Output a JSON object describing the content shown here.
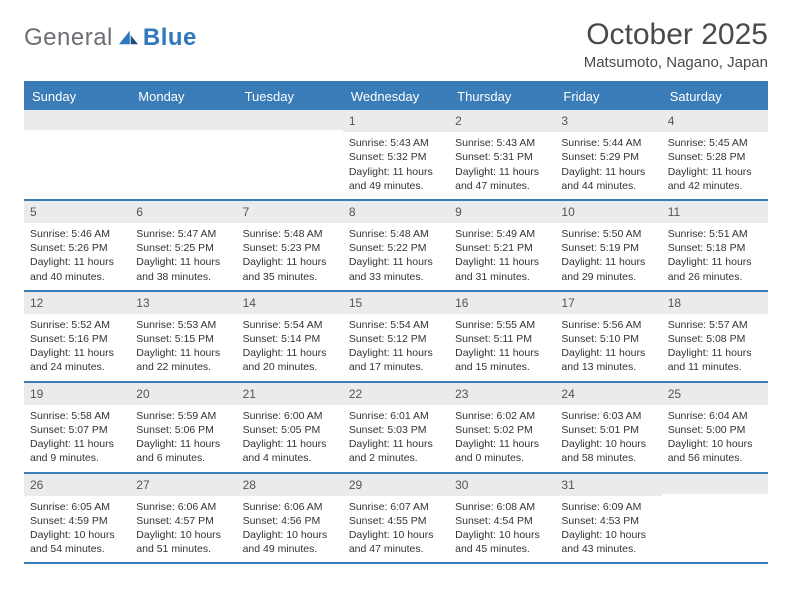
{
  "logo": {
    "word1": "General",
    "word2": "Blue"
  },
  "title": "October 2025",
  "location": "Matsumoto, Nagano, Japan",
  "colors": {
    "header_bar": "#3a7cb8",
    "daynum_bg": "#e9ebed",
    "rule": "#3a7cb8",
    "logo_gray": "#6b6f73",
    "logo_blue": "#2f78bd",
    "text": "#333333"
  },
  "weekdays": [
    "Sunday",
    "Monday",
    "Tuesday",
    "Wednesday",
    "Thursday",
    "Friday",
    "Saturday"
  ],
  "weeks": [
    [
      {
        "n": "",
        "lines": [
          "",
          "",
          "",
          ""
        ]
      },
      {
        "n": "",
        "lines": [
          "",
          "",
          "",
          ""
        ]
      },
      {
        "n": "",
        "lines": [
          "",
          "",
          "",
          ""
        ]
      },
      {
        "n": "1",
        "lines": [
          "Sunrise: 5:43 AM",
          "Sunset: 5:32 PM",
          "Daylight: 11 hours",
          "and 49 minutes."
        ]
      },
      {
        "n": "2",
        "lines": [
          "Sunrise: 5:43 AM",
          "Sunset: 5:31 PM",
          "Daylight: 11 hours",
          "and 47 minutes."
        ]
      },
      {
        "n": "3",
        "lines": [
          "Sunrise: 5:44 AM",
          "Sunset: 5:29 PM",
          "Daylight: 11 hours",
          "and 44 minutes."
        ]
      },
      {
        "n": "4",
        "lines": [
          "Sunrise: 5:45 AM",
          "Sunset: 5:28 PM",
          "Daylight: 11 hours",
          "and 42 minutes."
        ]
      }
    ],
    [
      {
        "n": "5",
        "lines": [
          "Sunrise: 5:46 AM",
          "Sunset: 5:26 PM",
          "Daylight: 11 hours",
          "and 40 minutes."
        ]
      },
      {
        "n": "6",
        "lines": [
          "Sunrise: 5:47 AM",
          "Sunset: 5:25 PM",
          "Daylight: 11 hours",
          "and 38 minutes."
        ]
      },
      {
        "n": "7",
        "lines": [
          "Sunrise: 5:48 AM",
          "Sunset: 5:23 PM",
          "Daylight: 11 hours",
          "and 35 minutes."
        ]
      },
      {
        "n": "8",
        "lines": [
          "Sunrise: 5:48 AM",
          "Sunset: 5:22 PM",
          "Daylight: 11 hours",
          "and 33 minutes."
        ]
      },
      {
        "n": "9",
        "lines": [
          "Sunrise: 5:49 AM",
          "Sunset: 5:21 PM",
          "Daylight: 11 hours",
          "and 31 minutes."
        ]
      },
      {
        "n": "10",
        "lines": [
          "Sunrise: 5:50 AM",
          "Sunset: 5:19 PM",
          "Daylight: 11 hours",
          "and 29 minutes."
        ]
      },
      {
        "n": "11",
        "lines": [
          "Sunrise: 5:51 AM",
          "Sunset: 5:18 PM",
          "Daylight: 11 hours",
          "and 26 minutes."
        ]
      }
    ],
    [
      {
        "n": "12",
        "lines": [
          "Sunrise: 5:52 AM",
          "Sunset: 5:16 PM",
          "Daylight: 11 hours",
          "and 24 minutes."
        ]
      },
      {
        "n": "13",
        "lines": [
          "Sunrise: 5:53 AM",
          "Sunset: 5:15 PM",
          "Daylight: 11 hours",
          "and 22 minutes."
        ]
      },
      {
        "n": "14",
        "lines": [
          "Sunrise: 5:54 AM",
          "Sunset: 5:14 PM",
          "Daylight: 11 hours",
          "and 20 minutes."
        ]
      },
      {
        "n": "15",
        "lines": [
          "Sunrise: 5:54 AM",
          "Sunset: 5:12 PM",
          "Daylight: 11 hours",
          "and 17 minutes."
        ]
      },
      {
        "n": "16",
        "lines": [
          "Sunrise: 5:55 AM",
          "Sunset: 5:11 PM",
          "Daylight: 11 hours",
          "and 15 minutes."
        ]
      },
      {
        "n": "17",
        "lines": [
          "Sunrise: 5:56 AM",
          "Sunset: 5:10 PM",
          "Daylight: 11 hours",
          "and 13 minutes."
        ]
      },
      {
        "n": "18",
        "lines": [
          "Sunrise: 5:57 AM",
          "Sunset: 5:08 PM",
          "Daylight: 11 hours",
          "and 11 minutes."
        ]
      }
    ],
    [
      {
        "n": "19",
        "lines": [
          "Sunrise: 5:58 AM",
          "Sunset: 5:07 PM",
          "Daylight: 11 hours",
          "and 9 minutes."
        ]
      },
      {
        "n": "20",
        "lines": [
          "Sunrise: 5:59 AM",
          "Sunset: 5:06 PM",
          "Daylight: 11 hours",
          "and 6 minutes."
        ]
      },
      {
        "n": "21",
        "lines": [
          "Sunrise: 6:00 AM",
          "Sunset: 5:05 PM",
          "Daylight: 11 hours",
          "and 4 minutes."
        ]
      },
      {
        "n": "22",
        "lines": [
          "Sunrise: 6:01 AM",
          "Sunset: 5:03 PM",
          "Daylight: 11 hours",
          "and 2 minutes."
        ]
      },
      {
        "n": "23",
        "lines": [
          "Sunrise: 6:02 AM",
          "Sunset: 5:02 PM",
          "Daylight: 11 hours",
          "and 0 minutes."
        ]
      },
      {
        "n": "24",
        "lines": [
          "Sunrise: 6:03 AM",
          "Sunset: 5:01 PM",
          "Daylight: 10 hours",
          "and 58 minutes."
        ]
      },
      {
        "n": "25",
        "lines": [
          "Sunrise: 6:04 AM",
          "Sunset: 5:00 PM",
          "Daylight: 10 hours",
          "and 56 minutes."
        ]
      }
    ],
    [
      {
        "n": "26",
        "lines": [
          "Sunrise: 6:05 AM",
          "Sunset: 4:59 PM",
          "Daylight: 10 hours",
          "and 54 minutes."
        ]
      },
      {
        "n": "27",
        "lines": [
          "Sunrise: 6:06 AM",
          "Sunset: 4:57 PM",
          "Daylight: 10 hours",
          "and 51 minutes."
        ]
      },
      {
        "n": "28",
        "lines": [
          "Sunrise: 6:06 AM",
          "Sunset: 4:56 PM",
          "Daylight: 10 hours",
          "and 49 minutes."
        ]
      },
      {
        "n": "29",
        "lines": [
          "Sunrise: 6:07 AM",
          "Sunset: 4:55 PM",
          "Daylight: 10 hours",
          "and 47 minutes."
        ]
      },
      {
        "n": "30",
        "lines": [
          "Sunrise: 6:08 AM",
          "Sunset: 4:54 PM",
          "Daylight: 10 hours",
          "and 45 minutes."
        ]
      },
      {
        "n": "31",
        "lines": [
          "Sunrise: 6:09 AM",
          "Sunset: 4:53 PM",
          "Daylight: 10 hours",
          "and 43 minutes."
        ]
      },
      {
        "n": "",
        "lines": [
          "",
          "",
          "",
          ""
        ]
      }
    ]
  ]
}
